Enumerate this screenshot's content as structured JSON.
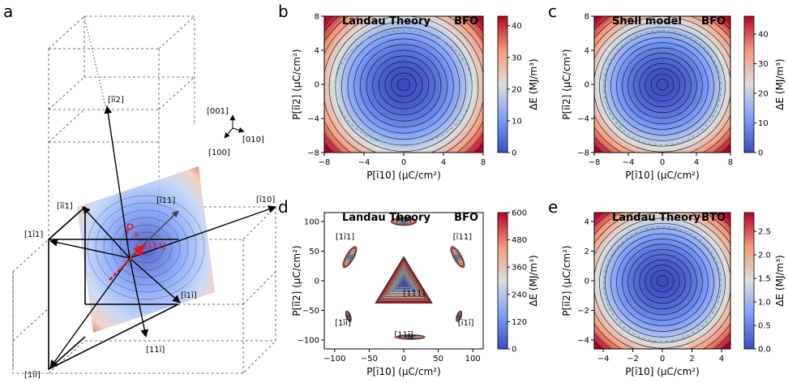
{
  "figure": {
    "panel_a": {
      "letter": "a",
      "ps_label": "P",
      "ps_sub": "s",
      "ps_color": "#e8141c",
      "axes_triad": [
        "[001]",
        "[010]",
        "[100]"
      ],
      "directions": {
        "d112": "[īī2]",
        "d111": "[111]",
        "d110": "[ī10]",
        "dm111": "[ī11]",
        "dm1m11": "[īī1]",
        "d1m11": "[1ī1]",
        "dm11m1": "[ī1ī]",
        "d11m1": "[11ī]",
        "d1m1m1": "[1īī]"
      }
    }
  },
  "chart_data": [
    {
      "type": "heatmap",
      "panel": "b",
      "title": "Landau Theory",
      "title_right": "BFO",
      "xlabel": "P[ī10] (μC/cm²)",
      "ylabel": "P[īī2] (μC/cm²)",
      "xlim": [
        -8,
        8
      ],
      "ylim": [
        -8,
        8
      ],
      "xticks": [
        -8,
        -4,
        0,
        4,
        8
      ],
      "yticks": [
        -8,
        -4,
        0,
        4,
        8
      ],
      "colorbar": {
        "label": "ΔE (MJ/m³)",
        "range": [
          0,
          43
        ],
        "ticks": [
          0,
          10,
          20,
          30,
          40
        ]
      },
      "colormap": "coolwarm",
      "contours": "concentric, minimum at origin"
    },
    {
      "type": "heatmap",
      "panel": "c",
      "title": "Shell model",
      "title_right": "BFO",
      "xlabel": "P[ī10] (μC/cm²)",
      "ylabel": "P[īī2] (μC/cm²)",
      "xlim": [
        -8,
        8
      ],
      "ylim": [
        -8,
        8
      ],
      "xticks": [
        -8,
        -4,
        0,
        4,
        8
      ],
      "yticks": [
        -8,
        -4,
        0,
        4,
        8
      ],
      "colorbar": {
        "label": "ΔE (MJ/m³)",
        "range": [
          0,
          46
        ],
        "ticks": [
          0,
          10,
          20,
          30,
          40
        ]
      },
      "colormap": "coolwarm",
      "contours": "concentric, minimum at origin"
    },
    {
      "type": "heatmap",
      "panel": "d",
      "title": "Landau Theory",
      "title_right": "BFO",
      "xlabel": "P[ī10] (μC/cm²)",
      "ylabel": "P[īī2] (μC/cm²)",
      "xlim": [
        -115,
        115
      ],
      "ylim": [
        -115,
        115
      ],
      "xticks": [
        -100,
        -50,
        0,
        50,
        100
      ],
      "yticks": [
        -100,
        -50,
        0,
        50,
        100
      ],
      "colorbar": {
        "label": "ΔE (MJ/m³)",
        "range": [
          0,
          600
        ],
        "ticks": [
          0,
          120,
          240,
          360,
          480,
          600
        ]
      },
      "colormap": "coolwarm",
      "annotations": [
        {
          "text": "[īī1]",
          "x": 0,
          "y": 100
        },
        {
          "text": "[1ī1]",
          "x": -85,
          "y": 70
        },
        {
          "text": "[ī11]",
          "x": 85,
          "y": 70
        },
        {
          "text": "[111]",
          "x": 15,
          "y": -25
        },
        {
          "text": "[1īī]",
          "x": -88,
          "y": -75
        },
        {
          "text": "[ī1ī]",
          "x": 90,
          "y": -75
        },
        {
          "text": "[11ī]",
          "x": 0,
          "y": -95
        }
      ]
    },
    {
      "type": "heatmap",
      "panel": "e",
      "title": "Landau Theory",
      "title_right": "BTO",
      "xlabel": "P[ī10] (μC/cm²)",
      "ylabel": "P[īī2] (μC/cm²)",
      "xlim": [
        -4.6,
        4.6
      ],
      "ylim": [
        -4.6,
        4.6
      ],
      "xticks": [
        -4,
        -2,
        0,
        2,
        4
      ],
      "yticks": [
        -4,
        -2,
        0,
        2,
        4
      ],
      "colorbar": {
        "label": "ΔE (MJ/m³)",
        "range": [
          0,
          2.9
        ],
        "ticks": [
          "0.0",
          "0.5",
          "1.0",
          "1.5",
          "2.0",
          "2.5"
        ]
      },
      "colormap": "coolwarm",
      "contours": "concentric, minimum at origin"
    }
  ]
}
